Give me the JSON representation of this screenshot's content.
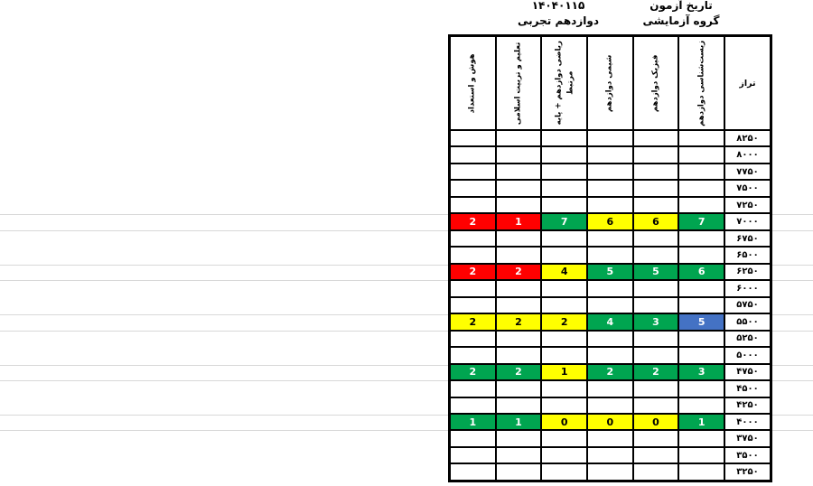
{
  "annotations": {
    "exam_date_label": "تاریخ آزمون",
    "exam_group_label": "گروه آزمایشی",
    "exam_date_value": "۱۴۰۴۰۱۱۵",
    "exam_group_value": "دوازدهم تجربی"
  },
  "colors": {
    "red": "#ff0000",
    "green": "#00a550",
    "yellow": "#ffff00",
    "blue": "#4472c4",
    "gridline": "#d8d8d8",
    "border": "#000000"
  },
  "table": {
    "columns": [
      {
        "key": "taraz",
        "label": "تراز",
        "vertical": false
      },
      {
        "key": "zist",
        "label": "زیست‌شناسی دوازدهم",
        "vertical": true
      },
      {
        "key": "fizik",
        "label": "فیزیک دوازدهم",
        "vertical": true
      },
      {
        "key": "shimi",
        "label": "شیمی دوازدهم",
        "vertical": true
      },
      {
        "key": "riazi",
        "label": "ریاضی دوازدهم + پایه مرتبط",
        "vertical": true
      },
      {
        "key": "talim",
        "label": "تعلیم و تربیت اسلامی",
        "vertical": true
      },
      {
        "key": "hoosh",
        "label": "هوش و استعداد",
        "vertical": true
      }
    ],
    "rows": [
      {
        "taraz": "۸۲۵۰",
        "cells": [
          null,
          null,
          null,
          null,
          null,
          null
        ]
      },
      {
        "taraz": "۸۰۰۰",
        "cells": [
          null,
          null,
          null,
          null,
          null,
          null
        ]
      },
      {
        "taraz": "۷۷۵۰",
        "cells": [
          null,
          null,
          null,
          null,
          null,
          null
        ]
      },
      {
        "taraz": "۷۵۰۰",
        "cells": [
          null,
          null,
          null,
          null,
          null,
          null
        ]
      },
      {
        "taraz": "۷۲۵۰",
        "cells": [
          null,
          null,
          null,
          null,
          null,
          null
        ]
      },
      {
        "taraz": "۷۰۰۰",
        "cells": [
          {
            "v": "7",
            "c": "green"
          },
          {
            "v": "6",
            "c": "yellow"
          },
          {
            "v": "6",
            "c": "yellow"
          },
          {
            "v": "7",
            "c": "green"
          },
          {
            "v": "1",
            "c": "red"
          },
          {
            "v": "2",
            "c": "red"
          }
        ]
      },
      {
        "taraz": "۶۷۵۰",
        "cells": [
          null,
          null,
          null,
          null,
          null,
          null
        ]
      },
      {
        "taraz": "۶۵۰۰",
        "cells": [
          null,
          null,
          null,
          null,
          null,
          null
        ]
      },
      {
        "taraz": "۶۲۵۰",
        "cells": [
          {
            "v": "6",
            "c": "green"
          },
          {
            "v": "5",
            "c": "green"
          },
          {
            "v": "5",
            "c": "green"
          },
          {
            "v": "4",
            "c": "yellow"
          },
          {
            "v": "2",
            "c": "red"
          },
          {
            "v": "2",
            "c": "red"
          }
        ]
      },
      {
        "taraz": "۶۰۰۰",
        "cells": [
          null,
          null,
          null,
          null,
          null,
          null
        ]
      },
      {
        "taraz": "۵۷۵۰",
        "cells": [
          null,
          null,
          null,
          null,
          null,
          null
        ]
      },
      {
        "taraz": "۵۵۰۰",
        "cells": [
          {
            "v": "5",
            "c": "blue"
          },
          {
            "v": "3",
            "c": "green"
          },
          {
            "v": "4",
            "c": "green"
          },
          {
            "v": "2",
            "c": "yellow"
          },
          {
            "v": "2",
            "c": "yellow"
          },
          {
            "v": "2",
            "c": "yellow"
          }
        ]
      },
      {
        "taraz": "۵۲۵۰",
        "cells": [
          null,
          null,
          null,
          null,
          null,
          null
        ]
      },
      {
        "taraz": "۵۰۰۰",
        "cells": [
          null,
          null,
          null,
          null,
          null,
          null
        ]
      },
      {
        "taraz": "۴۷۵۰",
        "cells": [
          {
            "v": "3",
            "c": "green"
          },
          {
            "v": "2",
            "c": "green"
          },
          {
            "v": "2",
            "c": "green"
          },
          {
            "v": "1",
            "c": "yellow"
          },
          {
            "v": "2",
            "c": "green"
          },
          {
            "v": "2",
            "c": "green"
          }
        ]
      },
      {
        "taraz": "۴۵۰۰",
        "cells": [
          null,
          null,
          null,
          null,
          null,
          null
        ]
      },
      {
        "taraz": "۴۲۵۰",
        "cells": [
          null,
          null,
          null,
          null,
          null,
          null
        ]
      },
      {
        "taraz": "۴۰۰۰",
        "cells": [
          {
            "v": "1",
            "c": "green"
          },
          {
            "v": "0",
            "c": "yellow"
          },
          {
            "v": "0",
            "c": "yellow"
          },
          {
            "v": "0",
            "c": "yellow"
          },
          {
            "v": "1",
            "c": "green"
          },
          {
            "v": "1",
            "c": "green"
          }
        ]
      },
      {
        "taraz": "۳۷۵۰",
        "cells": [
          null,
          null,
          null,
          null,
          null,
          null
        ]
      },
      {
        "taraz": "۳۵۰۰",
        "cells": [
          null,
          null,
          null,
          null,
          null,
          null
        ]
      },
      {
        "taraz": "۳۲۵۰",
        "cells": [
          null,
          null,
          null,
          null,
          null,
          null
        ]
      }
    ]
  }
}
